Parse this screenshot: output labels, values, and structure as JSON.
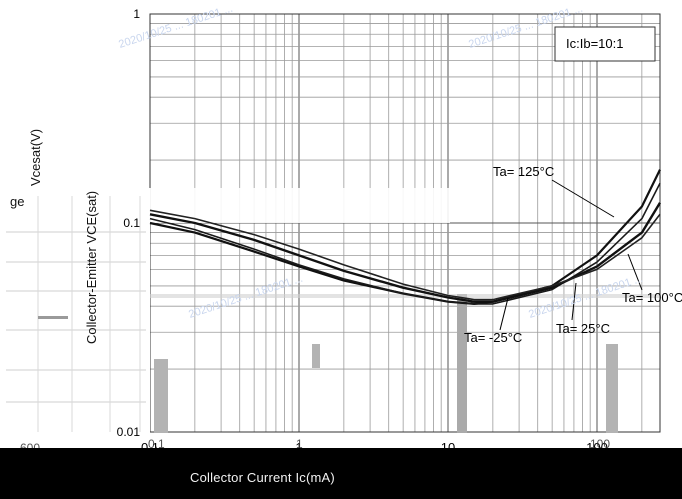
{
  "chart_data": {
    "type": "line",
    "title": "",
    "xlabel": "Collector Current   Ic(mA)",
    "ylabel": "Collector-Emitter VCE(sat)",
    "ylabel_partial": "Vcesat(V)",
    "ylabel_fragment": "ge",
    "x_scale": "log",
    "y_scale": "log",
    "xlim": [
      0.1,
      300
    ],
    "ylim": [
      0.01,
      1
    ],
    "x_ticks": [
      "0.1",
      "1",
      "10",
      "100"
    ],
    "y_ticks": [
      "1",
      "0.1",
      "0.01"
    ],
    "condition_label": "Ic:Ib=10:1",
    "grid": true,
    "series": [
      {
        "name": "Ta= 125°C",
        "x": [
          0.1,
          0.2,
          0.5,
          1,
          2,
          5,
          10,
          15,
          20,
          50,
          100,
          200,
          300
        ],
        "y": [
          0.1,
          0.09,
          0.073,
          0.062,
          0.053,
          0.046,
          0.042,
          0.041,
          0.042,
          0.05,
          0.07,
          0.12,
          0.18
        ]
      },
      {
        "name": "Ta= 100°C",
        "x": [
          0.1,
          0.2,
          0.5,
          1,
          2,
          5,
          10,
          15,
          20,
          50,
          100,
          200,
          300
        ],
        "y": [
          0.105,
          0.093,
          0.075,
          0.063,
          0.054,
          0.046,
          0.042,
          0.041,
          0.041,
          0.048,
          0.065,
          0.105,
          0.155
        ]
      },
      {
        "name": "Ta= 25°C",
        "x": [
          0.1,
          0.2,
          0.5,
          1,
          2,
          5,
          10,
          15,
          20,
          50,
          100,
          200,
          300
        ],
        "y": [
          0.11,
          0.1,
          0.083,
          0.07,
          0.059,
          0.049,
          0.044,
          0.042,
          0.042,
          0.049,
          0.062,
          0.09,
          0.125
        ]
      },
      {
        "name": "Ta= -25°C",
        "x": [
          0.1,
          0.2,
          0.5,
          1,
          2,
          5,
          10,
          15,
          20,
          50,
          100,
          200,
          300
        ],
        "y": [
          0.115,
          0.105,
          0.088,
          0.075,
          0.063,
          0.051,
          0.045,
          0.043,
          0.043,
          0.05,
          0.06,
          0.085,
          0.11
        ]
      }
    ],
    "annotations": [
      "Ta= 125°C",
      "Ta= 100°C",
      "Ta= 25°C",
      "Ta= -25°C"
    ],
    "overlay_fragments": [
      "600",
      "0.1",
      "1",
      "100"
    ],
    "watermark": "2020/10/25 ... 180201 ..."
  }
}
